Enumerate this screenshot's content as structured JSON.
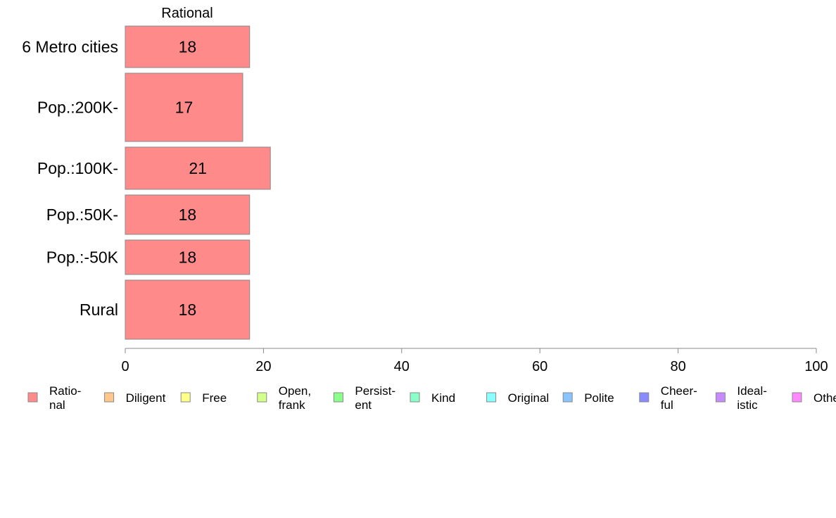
{
  "chart_data": {
    "type": "bar",
    "orientation": "horizontal",
    "stacked": true,
    "title": "",
    "panel_title": "Rational",
    "xlabel": "",
    "ylabel": "",
    "xlim": [
      0,
      100
    ],
    "x_ticks": [
      "0",
      "20",
      "40",
      "60",
      "80",
      "100"
    ],
    "categories": [
      "6 Metro cities",
      "Pop.:200K-",
      "Pop.:100K-",
      "Pop.:50K-",
      "Pop.:-50K",
      "Rural"
    ],
    "series": [
      {
        "name": "Ratio-\nnal",
        "values": [
          18,
          17,
          21,
          18,
          18,
          18
        ],
        "data_labels": [
          "18",
          "17",
          "21",
          "18",
          "18",
          "18"
        ],
        "color": "#ff8a8a"
      }
    ],
    "grid": false,
    "legend_position": "bottom",
    "legend": [
      {
        "label": "Ratio-\nnal",
        "color": "#ff8a8a"
      },
      {
        "label": "Diligent",
        "color": "#ffc88a"
      },
      {
        "label": "Free",
        "color": "#ffff8a"
      },
      {
        "label": "Open,\nfrank",
        "color": "#d4ff8a"
      },
      {
        "label": "Persist-\nent",
        "color": "#8aff8a"
      },
      {
        "label": "Kind",
        "color": "#8affc8"
      },
      {
        "label": "Original",
        "color": "#8affff"
      },
      {
        "label": "Polite",
        "color": "#8ac4ff"
      },
      {
        "label": "Cheer-\nful",
        "color": "#8a8aff"
      },
      {
        "label": "Ideal-\nistic",
        "color": "#c88aff"
      },
      {
        "label": "Others",
        "color": "#ff8aff"
      }
    ]
  }
}
